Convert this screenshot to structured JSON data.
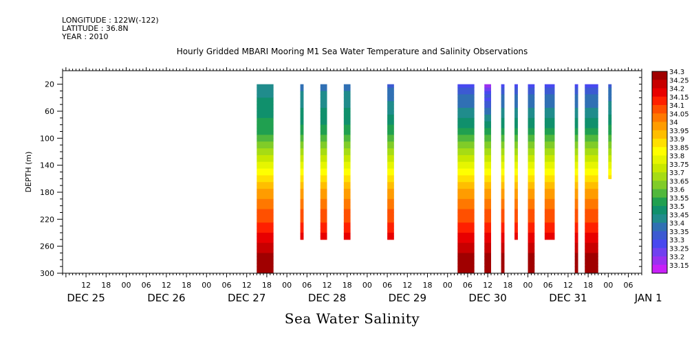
{
  "header": {
    "longitude": "LONGITUDE : 122W(-122)",
    "latitude": "LATITUDE : 36.8N",
    "year": "YEAR : 2010"
  },
  "title": "Hourly Gridded MBARI Mooring M1 Sea Water Temperature and Salinity Observations",
  "footer": "Sea Water Salinity",
  "chart_data": {
    "type": "heatmap",
    "title": "Hourly Gridded MBARI Mooring M1 Sea Water Temperature and Salinity Observations",
    "xlabel": "",
    "ylabel": "DEPTH (m)",
    "x_hour_ticks": [
      "12",
      "18",
      "00",
      "06",
      "12",
      "18",
      "00",
      "06",
      "12",
      "18",
      "00",
      "06",
      "12",
      "18",
      "00",
      "06",
      "12",
      "18",
      "00",
      "06",
      "12",
      "18",
      "00",
      "06",
      "12",
      "18",
      "00",
      "06",
      "12",
      "18",
      "00",
      "06"
    ],
    "x_date_labels": [
      "DEC 25",
      "DEC 26",
      "DEC 27",
      "DEC 28",
      "DEC 29",
      "DEC 30",
      "DEC 31",
      "JAN  1"
    ],
    "xlim_hours_from_dec25_00": [
      5,
      178
    ],
    "ylim_depth_m": [
      300,
      0
    ],
    "y_ticks": [
      20,
      60,
      100,
      140,
      180,
      220,
      260,
      300
    ],
    "color_levels": [
      "34.3",
      "34.25",
      "34.2",
      "34.15",
      "34.1",
      "34.05",
      "34",
      "33.95",
      "33.9",
      "33.85",
      "33.8",
      "33.75",
      "33.7",
      "33.65",
      "33.6",
      "33.55",
      "33.5",
      "33.45",
      "33.4",
      "33.35",
      "33.3",
      "33.25",
      "33.2",
      "33.15"
    ],
    "colors": [
      "#a00000",
      "#c80000",
      "#e80000",
      "#ff2000",
      "#ff5000",
      "#ff7800",
      "#ff9c00",
      "#ffbe00",
      "#ffe000",
      "#ffff00",
      "#e6f500",
      "#c8e800",
      "#a6dc14",
      "#80cc28",
      "#50b83c",
      "#20a050",
      "#10906c",
      "#208c8c",
      "#3070b4",
      "#3c5ad2",
      "#4848f0",
      "#7040f0",
      "#9a30f0",
      "#c820f8"
    ],
    "observation_columns": [
      {
        "start_hour": 63,
        "end_hour": 68,
        "max_depth_m": 300,
        "surface_salinity": 33.45
      },
      {
        "start_hour": 76,
        "end_hour": 77,
        "max_depth_m": 250,
        "surface_salinity": 33.4
      },
      {
        "start_hour": 82,
        "end_hour": 84,
        "max_depth_m": 250,
        "surface_salinity": 33.4
      },
      {
        "start_hour": 89,
        "end_hour": 91,
        "max_depth_m": 250,
        "surface_salinity": 33.4
      },
      {
        "start_hour": 102,
        "end_hour": 104,
        "max_depth_m": 250,
        "surface_salinity": 33.35
      },
      {
        "start_hour": 123,
        "end_hour": 128,
        "max_depth_m": 300,
        "surface_salinity": 33.3
      },
      {
        "start_hour": 131,
        "end_hour": 133,
        "max_depth_m": 300,
        "surface_salinity": 33.2
      },
      {
        "start_hour": 136,
        "end_hour": 137,
        "max_depth_m": 300,
        "surface_salinity": 33.3
      },
      {
        "start_hour": 140,
        "end_hour": 141,
        "max_depth_m": 250,
        "surface_salinity": 33.3
      },
      {
        "start_hour": 144,
        "end_hour": 146,
        "max_depth_m": 300,
        "surface_salinity": 33.3
      },
      {
        "start_hour": 149,
        "end_hour": 152,
        "max_depth_m": 250,
        "surface_salinity": 33.3
      },
      {
        "start_hour": 158,
        "end_hour": 159,
        "max_depth_m": 300,
        "surface_salinity": 33.3
      },
      {
        "start_hour": 161,
        "end_hour": 165,
        "max_depth_m": 300,
        "surface_salinity": 33.3
      },
      {
        "start_hour": 168,
        "end_hour": 169,
        "max_depth_m": 160,
        "surface_salinity": 33.35
      }
    ],
    "grid": false,
    "legend_placement": "right"
  }
}
